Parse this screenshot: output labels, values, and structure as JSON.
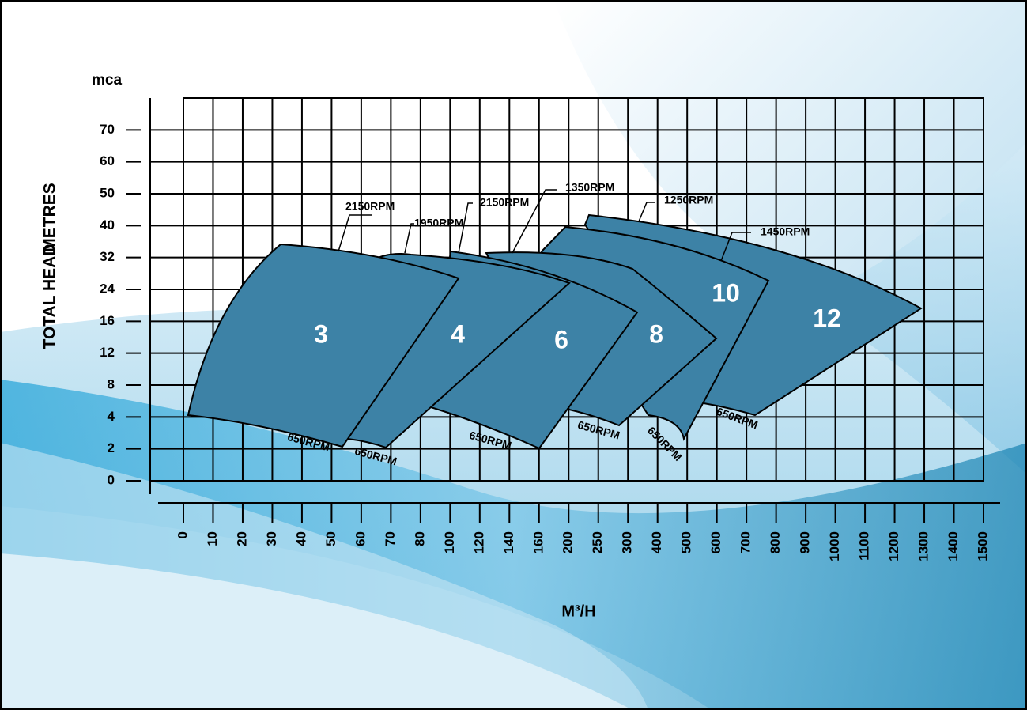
{
  "chart_data": {
    "type": "pump-selection",
    "y_unit": "mca",
    "ylabel_parts": [
      "TOTAL HEAD",
      "METRES"
    ],
    "xlabel": "M³/H",
    "yticks": [
      0,
      2,
      4,
      8,
      12,
      16,
      24,
      32,
      40,
      50,
      60,
      70
    ],
    "xticks": [
      0,
      10,
      20,
      30,
      40,
      50,
      60,
      70,
      80,
      100,
      120,
      140,
      160,
      200,
      250,
      300,
      400,
      500,
      600,
      700,
      800,
      900,
      1000,
      1100,
      1200,
      1300,
      1400,
      1500
    ],
    "color": "#3d82a6",
    "regions": [
      {
        "label": "12",
        "max_speed": "1250RPM",
        "min_speed": "650RPM"
      },
      {
        "label": "10",
        "max_speed": "1450RPM",
        "min_speed": "650RPM"
      },
      {
        "label": "8",
        "max_speed": "1350RPM",
        "min_speed": "650RPM"
      },
      {
        "label": "6",
        "max_speed": "2150RPM",
        "min_speed": "650RPM"
      },
      {
        "label": "4",
        "max_speed": "1950RPM",
        "min_speed": "650RPM"
      },
      {
        "label": "3",
        "max_speed": "2150RPM",
        "min_speed": "650RPM"
      }
    ]
  }
}
